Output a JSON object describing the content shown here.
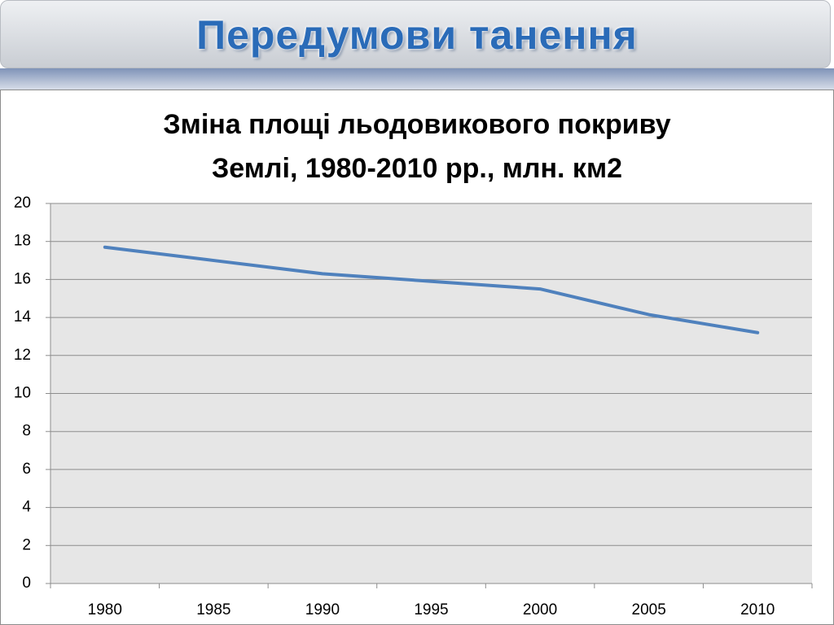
{
  "header": {
    "title": "Передумови танення"
  },
  "chart_data": {
    "type": "line",
    "title": "Зміна площі льодовикового покриву Землі, 1980-2010 рр., млн. км2",
    "categories": [
      "1980",
      "1985",
      "1990",
      "1995",
      "2000",
      "2005",
      "2010"
    ],
    "values": [
      17.7,
      17.0,
      16.3,
      15.9,
      15.5,
      14.15,
      13.2
    ],
    "color": "#4f81bd",
    "ylim": [
      0,
      20
    ],
    "yticks": [
      0,
      2,
      4,
      6,
      8,
      10,
      12,
      14,
      16,
      18,
      20
    ],
    "grid": true
  }
}
